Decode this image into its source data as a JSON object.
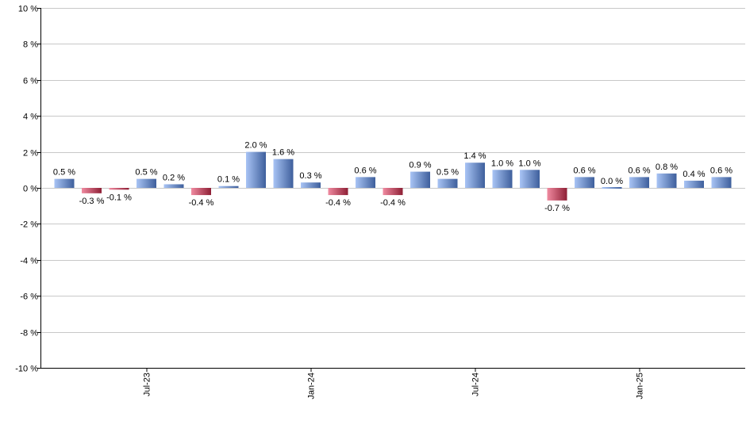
{
  "chart_data": {
    "type": "bar",
    "title": "",
    "xlabel": "",
    "ylabel": "",
    "ylim": [
      -10,
      10
    ],
    "y_ticks": [
      10,
      8,
      6,
      4,
      2,
      0,
      -2,
      -4,
      -6,
      -8,
      -10
    ],
    "y_tick_labels": [
      "10 %",
      "8 %",
      "6 %",
      "4 %",
      "2 %",
      "0 %",
      "-2 %",
      "-4 %",
      "-6 %",
      "-8 %",
      "-10 %"
    ],
    "grid": "horizontal",
    "categories": [
      "2023-04",
      "2023-05",
      "2023-06",
      "2023-07",
      "2023-08",
      "2023-09",
      "2023-10",
      "2023-11",
      "2023-12",
      "2024-01",
      "2024-02",
      "2024-03",
      "2024-04",
      "2024-05",
      "2024-06",
      "2024-07",
      "2024-08",
      "2024-09",
      "2024-10",
      "2024-11",
      "2024-12",
      "2025-01",
      "2025-02",
      "2025-03",
      "2025-04"
    ],
    "x_tick_labels": [
      {
        "category": "2023-07",
        "label": "Jul-23"
      },
      {
        "category": "2024-01",
        "label": "Jan-24"
      },
      {
        "category": "2024-07",
        "label": "Jul-24"
      },
      {
        "category": "2025-01",
        "label": "Jan-25"
      }
    ],
    "values": [
      0.5,
      -0.3,
      -0.1,
      0.5,
      0.2,
      -0.4,
      0.1,
      2.0,
      1.6,
      0.3,
      -0.4,
      0.6,
      -0.4,
      0.9,
      0.5,
      1.4,
      1.0,
      1.0,
      -0.7,
      0.6,
      0.0,
      0.6,
      0.8,
      0.4,
      0.6
    ],
    "labels": [
      "0.5 %",
      "-0.3 %",
      "-0.1 %",
      "0.5 %",
      "0.2 %",
      "-0.4 %",
      "0.1 %",
      "2.0 %",
      "1.6 %",
      "0.3 %",
      "-0.4 %",
      "0.6 %",
      "-0.4 %",
      "0.9 %",
      "0.5 %",
      "1.4 %",
      "1.0 %",
      "1.0 %",
      "-0.7 %",
      "0.6 %",
      "0.0 %",
      "0.6 %",
      "0.8 %",
      "0.4 %",
      "0.6 %"
    ],
    "colors": {
      "positive_light": "#a9c4f5",
      "positive_dark": "#3e5f9c",
      "negative_light": "#f08aa0",
      "negative_dark": "#8e1f35",
      "grid": "#c8c8c8",
      "axis": "#000000"
    }
  }
}
